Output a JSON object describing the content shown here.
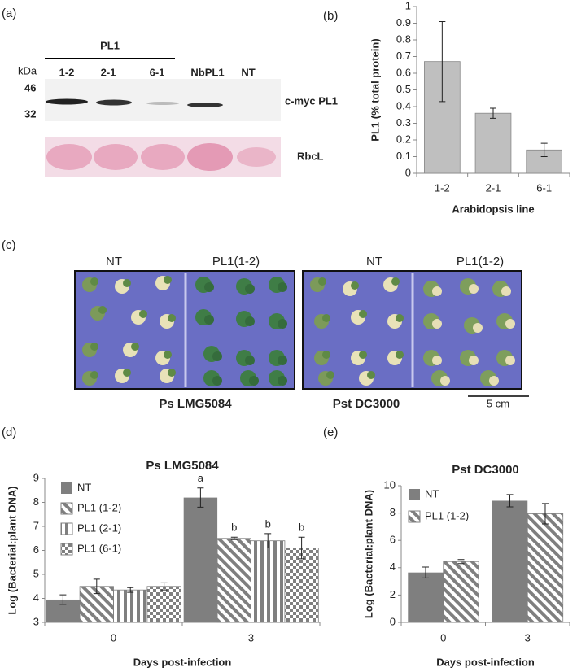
{
  "panel_a": {
    "label": "(a)",
    "group": "PL1",
    "unit": "kDa",
    "markers": [
      46,
      32
    ],
    "lanes": [
      "1-2",
      "2-1",
      "6-1",
      "NbPL1",
      "NT"
    ],
    "bands": [
      "c-myc PL1",
      "RbcL"
    ]
  },
  "panel_c": {
    "label": "(c)",
    "columns": [
      "NT",
      "PL1(1-2)",
      "NT",
      "PL1(1-2)"
    ],
    "strains": [
      "Ps LMG5084",
      "Pst DC3000"
    ],
    "scale": "5 cm"
  },
  "chart_data": [
    {
      "type": "bar",
      "label": "(b)",
      "categories": [
        "1-2",
        "2-1",
        "6-1"
      ],
      "values": [
        0.67,
        0.36,
        0.14
      ],
      "errors": [
        0.24,
        0.03,
        0.04
      ],
      "color": "#bfbfbf",
      "ylim": [
        0,
        1
      ],
      "yticks": [
        0,
        0.1,
        0.2,
        0.3,
        0.4,
        0.5,
        0.6,
        0.7,
        0.8,
        0.9,
        1
      ],
      "ylabel": "PL1 (% total protein)",
      "xlabel": "Arabidopsis line"
    },
    {
      "type": "bar",
      "label": "(d)",
      "title": "Ps LMG5084",
      "categories": [
        "0",
        "3"
      ],
      "series": [
        {
          "name": "NT",
          "color": "#7f7f7f",
          "pattern": "solid",
          "values": [
            3.95,
            8.2
          ],
          "errors": [
            0.2,
            0.4
          ],
          "letters": [
            null,
            "a"
          ]
        },
        {
          "name": "PL1 (1-2)",
          "color": "#7f7f7f",
          "pattern": "diagonal",
          "values": [
            4.5,
            6.5
          ],
          "errors": [
            0.3,
            0.05
          ],
          "letters": [
            null,
            "b"
          ]
        },
        {
          "name": "PL1 (2-1)",
          "color": "#7f7f7f",
          "pattern": "vertical",
          "values": [
            4.35,
            6.4
          ],
          "errors": [
            0.1,
            0.3
          ],
          "letters": [
            null,
            "b"
          ]
        },
        {
          "name": "PL1 (6-1)",
          "color": "#7f7f7f",
          "pattern": "checker",
          "values": [
            4.5,
            6.1
          ],
          "errors": [
            0.15,
            0.45
          ],
          "letters": [
            null,
            "b"
          ]
        }
      ],
      "ylim": [
        3,
        9
      ],
      "yticks": [
        3,
        4,
        5,
        6,
        7,
        8,
        9
      ],
      "legend": "upper left",
      "ylabel": "Log (Bacterial:plant DNA)",
      "xlabel": "Days post-infection"
    },
    {
      "type": "bar",
      "label": "(e)",
      "title": "Pst DC3000",
      "categories": [
        "0",
        "3"
      ],
      "series": [
        {
          "name": "NT",
          "color": "#7f7f7f",
          "pattern": "solid",
          "values": [
            3.65,
            8.9
          ],
          "errors": [
            0.4,
            0.45
          ]
        },
        {
          "name": "PL1 (1-2)",
          "color": "#7f7f7f",
          "pattern": "diagonal",
          "values": [
            4.45,
            7.95
          ],
          "errors": [
            0.15,
            0.75
          ]
        }
      ],
      "ylim": [
        0,
        10
      ],
      "yticks": [
        0,
        2,
        4,
        6,
        8,
        10
      ],
      "legend": "upper left",
      "ylabel": "Log (Bacterial:plant DNA)",
      "xlabel": "Days post-infection"
    }
  ]
}
